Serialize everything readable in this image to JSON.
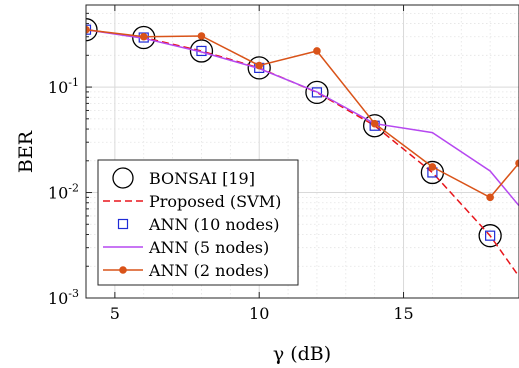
{
  "chart_data": {
    "type": "line",
    "title": "",
    "xlabel": "γ (dB)",
    "ylabel": "BER",
    "xlim": [
      4,
      19
    ],
    "ylim": [
      0.001,
      0.6
    ],
    "yscale": "log",
    "grid": true,
    "minor_grid": true,
    "legend_position": "bottom-left",
    "x_ticks": [
      {
        "value": 5,
        "label": "5"
      },
      {
        "value": 10,
        "label": "10"
      },
      {
        "value": 15,
        "label": "15"
      }
    ],
    "y_ticks": [
      {
        "value": 0.001,
        "base": "10",
        "exp": "-3"
      },
      {
        "value": 0.01,
        "base": "10",
        "exp": "-2"
      },
      {
        "value": 0.1,
        "base": "10",
        "exp": "-1"
      }
    ],
    "series": [
      {
        "name": "BONSAI [19]",
        "marker": "circle",
        "line": "none",
        "color": "#000000",
        "x": [
          4,
          6,
          8,
          10,
          12,
          14,
          16,
          18
        ],
        "y": [
          0.35,
          0.295,
          0.22,
          0.152,
          0.089,
          0.043,
          0.0155,
          0.0039
        ]
      },
      {
        "name": "Proposed (SVM)",
        "marker": "none",
        "line": "dashed",
        "color": "#e8151b",
        "x": [
          4,
          6,
          8,
          10,
          12,
          14,
          16,
          18,
          19
        ],
        "y": [
          0.35,
          0.295,
          0.22,
          0.152,
          0.089,
          0.043,
          0.0155,
          0.0039,
          0.0016
        ]
      },
      {
        "name": "ANN (10 nodes)",
        "marker": "square",
        "line": "none",
        "color": "#1f2bd6",
        "x": [
          4,
          6,
          8,
          10,
          12,
          14,
          16,
          18
        ],
        "y": [
          0.35,
          0.295,
          0.22,
          0.152,
          0.089,
          0.043,
          0.0155,
          0.0039
        ]
      },
      {
        "name": "ANN (5 nodes)",
        "marker": "none",
        "line": "solid",
        "color": "#b648f0",
        "x": [
          4,
          6,
          8,
          10,
          12,
          14,
          16,
          18,
          19
        ],
        "y": [
          0.35,
          0.29,
          0.215,
          0.15,
          0.09,
          0.045,
          0.037,
          0.016,
          0.0075
        ]
      },
      {
        "name": "ANN (2 nodes)",
        "marker": "dot",
        "line": "solid",
        "color": "#d95319",
        "x": [
          4,
          6,
          8,
          10,
          12,
          14,
          16,
          18,
          19
        ],
        "y": [
          0.35,
          0.3,
          0.305,
          0.16,
          0.22,
          0.045,
          0.0175,
          0.009,
          0.019
        ]
      }
    ]
  }
}
